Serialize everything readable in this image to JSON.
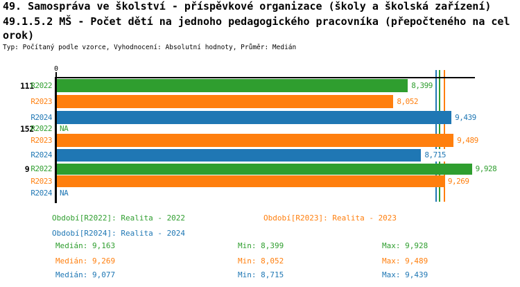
{
  "title": {
    "lines": [
      "49. Samospráva ve školství - příspěvkové organizace (školy a školská zařízení)",
      "49.1.5.2 MŠ - Počet dětí na jednoho pedagogického pracovníka (přepočteného na cel",
      "orok)"
    ],
    "subtitle": "Typ: Počítaný podle vzorce, Vyhodnocení: Absolutní hodnoty, Průměr: Medián"
  },
  "colors": {
    "green": "#2f9e2f",
    "orange": "#ff7f0e",
    "blue": "#1f77b4",
    "axis": "#000000"
  },
  "chart_data": {
    "type": "bar",
    "orientation": "horizontal",
    "grid": false,
    "origin_tick_label": "0",
    "xlim": [
      0,
      10
    ],
    "groups": [
      {
        "label": "111",
        "bars": [
          {
            "period": "R2022",
            "color": "green",
            "value": 8.399,
            "label": "8,399"
          },
          {
            "period": "R2023",
            "color": "orange",
            "value": 8.052,
            "label": "8,052"
          },
          {
            "period": "R2024",
            "color": "blue",
            "value": 9.439,
            "label": "9,439"
          }
        ]
      },
      {
        "label": "152",
        "bars": [
          {
            "period": "R2022",
            "color": "green",
            "value": null,
            "label": "NA"
          },
          {
            "period": "R2023",
            "color": "orange",
            "value": 9.489,
            "label": "9,489"
          },
          {
            "period": "R2024",
            "color": "blue",
            "value": 8.715,
            "label": "8,715"
          }
        ]
      },
      {
        "label": "9",
        "bars": [
          {
            "period": "R2022",
            "color": "green",
            "value": 9.928,
            "label": "9,928"
          },
          {
            "period": "R2023",
            "color": "orange",
            "value": 9.269,
            "label": "9,269"
          },
          {
            "period": "R2024",
            "color": "blue",
            "value": null,
            "label": "NA"
          }
        ]
      }
    ],
    "median_lines": [
      {
        "series": "R2024",
        "color": "blue",
        "value": 9.077
      },
      {
        "series": "R2022",
        "color": "green",
        "value": 9.163
      },
      {
        "series": "R2023",
        "color": "orange",
        "value": 9.269
      }
    ]
  },
  "legend": [
    {
      "row": 0,
      "col": 0,
      "color": "green",
      "text": "Období[R2022]: Realita - 2022"
    },
    {
      "row": 0,
      "col": 1,
      "color": "orange",
      "text": "Období[R2023]: Realita - 2023"
    },
    {
      "row": 1,
      "col": 0,
      "color": "blue",
      "text": "Období[R2024]: Realita - 2024"
    }
  ],
  "stats": [
    {
      "color": "green",
      "median": "Medián: 9,163",
      "min": "Min: 8,399",
      "max": "Max: 9,928"
    },
    {
      "color": "orange",
      "median": "Medián: 9,269",
      "min": "Min: 8,052",
      "max": "Max: 9,489"
    },
    {
      "color": "blue",
      "median": "Medián: 9,077",
      "min": "Min: 8,715",
      "max": "Max: 9,439"
    }
  ]
}
